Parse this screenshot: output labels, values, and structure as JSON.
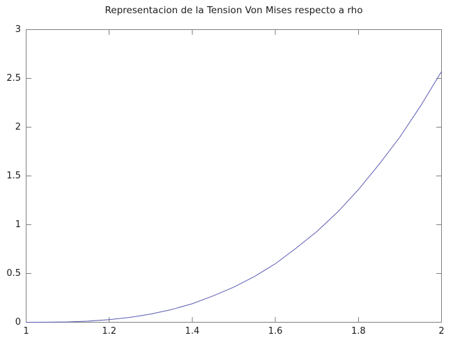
{
  "chart_data": {
    "type": "line",
    "title": "Representacion de la Tension Von Mises respecto a rho",
    "xlabel": "",
    "ylabel": "",
    "xlim": [
      1,
      2
    ],
    "ylim": [
      0,
      3
    ],
    "xticks": [
      1,
      1.2,
      1.4,
      1.6,
      1.8,
      2
    ],
    "xtick_labels": [
      "1",
      "1.2",
      "1.4",
      "1.6",
      "1.8",
      "2"
    ],
    "yticks": [
      0,
      0.5,
      1,
      1.5,
      2,
      2.5,
      3
    ],
    "ytick_labels": [
      "0",
      "0.5",
      "1",
      "1.5",
      "2",
      "2.5",
      "3"
    ],
    "grid": false,
    "legend": null,
    "series": [
      {
        "name": "Tension Von Mises",
        "color": "#5a5ab2",
        "x": [
          1.0,
          1.05,
          1.1,
          1.15,
          1.2,
          1.25,
          1.3,
          1.35,
          1.4,
          1.45,
          1.5,
          1.55,
          1.6,
          1.65,
          1.7,
          1.75,
          1.8,
          1.85,
          1.9,
          1.95,
          2.0
        ],
        "y": [
          0.0,
          0.001,
          0.004,
          0.012,
          0.027,
          0.05,
          0.084,
          0.13,
          0.19,
          0.27,
          0.36,
          0.47,
          0.6,
          0.76,
          0.93,
          1.13,
          1.36,
          1.62,
          1.9,
          2.22,
          2.57
        ]
      }
    ],
    "colors": {
      "background": "#ffffff",
      "frame": "#7f7f7f",
      "text": "#1c1c1c"
    }
  }
}
